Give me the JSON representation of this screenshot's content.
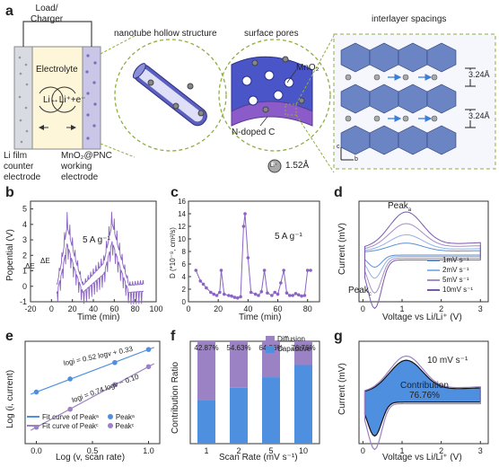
{
  "panels": {
    "a": {
      "letter": "a",
      "load_label": "Load/\nCharger",
      "electrolyte": "Electrolyte",
      "reaction": "Li↔Li⁺+e⁻",
      "left_electrode": "Li film\ncounter\nelectrode",
      "right_electrode": "MnO₂@PNC\nworking\nelectrode",
      "nanotube_title": "nanotube hollow structure",
      "pores_title": "surface pores",
      "mno2_label": "MnO₂",
      "ndoped_label": "N-doped C",
      "ion_symbol": "Li⁺",
      "ion_size": "1.52Å",
      "spacing_title": "interlayer spacings",
      "spacing_1": "3.24Å",
      "spacing_2": "3.24Å",
      "axis_c": "c",
      "axis_b": "b"
    },
    "b": {
      "letter": "b",
      "ylabel": "Popential (V)",
      "xlabel": "Time (min)",
      "annotation": "5 A g⁻¹",
      "delta_e": "ΔE",
      "delta_t": "ΔE",
      "yticks": [
        "-1",
        "0",
        "1",
        "2",
        "3",
        "4",
        "5"
      ],
      "xticks": [
        "-20",
        "0",
        "20",
        "40",
        "60",
        "80",
        "100"
      ]
    },
    "c": {
      "letter": "c",
      "ylabel": "D (*10⁻⁸, cm²/s)",
      "xlabel": "Time (min)",
      "annotation": "5 A g⁻¹",
      "yticks": [
        "0",
        "2",
        "4",
        "6",
        "8",
        "10",
        "12",
        "14",
        "16"
      ],
      "xticks": [
        "0",
        "20",
        "40",
        "60",
        "80"
      ]
    },
    "d": {
      "letter": "d",
      "ylabel": "Current (mV)",
      "xlabel": "Voltage vs Li/Li⁺ (V)",
      "peak_a": "Peak",
      "peak_a_sub": "a",
      "peak_c": "Peak",
      "peak_c_sub": "c",
      "xticks": [
        "0",
        "1",
        "2",
        "3"
      ],
      "legend": [
        "1mV s⁻¹",
        "2mV s⁻¹",
        "5mV s⁻¹",
        "10mV s⁻¹"
      ],
      "colors": [
        "#5b8fd6",
        "#8fb4e8",
        "#a68cc8",
        "#7a5aa8"
      ]
    },
    "e": {
      "letter": "e",
      "ylabel": "Log (i, current)",
      "xlabel": "Log (v, scan rate)",
      "eq1": "logi = 0.52 logv + 0.33",
      "eq2": "logi = 0.74 logv − 0.10",
      "xticks": [
        "0.0",
        "0.5",
        "1.0"
      ],
      "legend_fit_a": "Fit curve of Peak",
      "legend_fit_a_sub": "a",
      "legend_fit_c": "Fit curve of Peak",
      "legend_fit_c_sub": "c",
      "legend_pt_a": "Peak",
      "legend_pt_a_sub": "a",
      "legend_pt_c": "Peak",
      "legend_pt_c_sub": "c"
    },
    "f": {
      "letter": "f",
      "ylabel": "Contribution Ratio",
      "xlabel": "Scan Rate (mV s⁻¹)",
      "legend_diffusion": "Diffusion",
      "legend_capacitive": "Capacitive",
      "colors": {
        "diffusion": "#9b82c4",
        "capacitive": "#4f8fe0"
      }
    },
    "g": {
      "letter": "g",
      "ylabel": "Current (mV)",
      "xlabel": "Voltage vs Li/Li⁺ (V)",
      "scan": "10 mV s⁻¹",
      "contribution": "Contribution",
      "contribution_pct": "76.76%",
      "xticks": [
        "0",
        "1",
        "2",
        "3"
      ]
    }
  },
  "chart_data": [
    {
      "type": "line",
      "panel": "b",
      "xlabel": "Time (min)",
      "ylabel": "Popential (V)",
      "xlim": [
        -20,
        100
      ],
      "ylim": [
        -1,
        5.5
      ],
      "peaks_x": [
        10,
        15,
        22,
        28,
        55,
        60,
        66,
        72,
        84,
        89
      ],
      "envelope_upper": [
        {
          "x": 5,
          "y": 0.2
        },
        {
          "x": 10,
          "y": 2.2
        },
        {
          "x": 15,
          "y": 4.8
        },
        {
          "x": 22,
          "y": 2.5
        },
        {
          "x": 30,
          "y": 0.3
        },
        {
          "x": 50,
          "y": 2.0
        },
        {
          "x": 58,
          "y": 5.0
        },
        {
          "x": 66,
          "y": 2.5
        },
        {
          "x": 74,
          "y": 0.3
        },
        {
          "x": 88,
          "y": 0.4
        }
      ]
    },
    {
      "type": "line",
      "panel": "c",
      "xlabel": "Time (min)",
      "ylabel": "D (*10⁻⁸, cm²/s)",
      "xlim": [
        0,
        88
      ],
      "ylim": [
        0,
        16
      ],
      "points": [
        {
          "x": 5,
          "y": 5
        },
        {
          "x": 8,
          "y": 3.3
        },
        {
          "x": 10,
          "y": 2.8
        },
        {
          "x": 12,
          "y": 2.2
        },
        {
          "x": 15,
          "y": 1.5
        },
        {
          "x": 17,
          "y": 1.2
        },
        {
          "x": 19,
          "y": 1
        },
        {
          "x": 21,
          "y": 1.5
        },
        {
          "x": 22,
          "y": 5
        },
        {
          "x": 24,
          "y": 1.2
        },
        {
          "x": 27,
          "y": 1
        },
        {
          "x": 29,
          "y": 0.9
        },
        {
          "x": 31,
          "y": 0.7
        },
        {
          "x": 33,
          "y": 0.6
        },
        {
          "x": 35,
          "y": 0.8
        },
        {
          "x": 37,
          "y": 12
        },
        {
          "x": 38,
          "y": 14
        },
        {
          "x": 40,
          "y": 7
        },
        {
          "x": 42,
          "y": 1.5
        },
        {
          "x": 45,
          "y": 1.2
        },
        {
          "x": 47,
          "y": 1
        },
        {
          "x": 49,
          "y": 1.6
        },
        {
          "x": 51,
          "y": 5
        },
        {
          "x": 53,
          "y": 1.4
        },
        {
          "x": 56,
          "y": 1
        },
        {
          "x": 58,
          "y": 1.5
        },
        {
          "x": 60,
          "y": 1.2
        },
        {
          "x": 62,
          "y": 3
        },
        {
          "x": 64,
          "y": 5
        },
        {
          "x": 66,
          "y": 1.4
        },
        {
          "x": 68,
          "y": 1
        },
        {
          "x": 70,
          "y": 1
        },
        {
          "x": 72,
          "y": 1.3
        },
        {
          "x": 74,
          "y": 1.1
        },
        {
          "x": 76,
          "y": 0.9
        },
        {
          "x": 78,
          "y": 1
        },
        {
          "x": 80,
          "y": 5
        },
        {
          "x": 82,
          "y": 5
        }
      ]
    },
    {
      "type": "line",
      "panel": "d",
      "xlabel": "Voltage vs Li/Li⁺ (V)",
      "ylabel": "Current (mV)",
      "xlim": [
        -0.1,
        3.2
      ],
      "series": [
        {
          "name": "1mV s⁻¹",
          "scale": 0.25
        },
        {
          "name": "2mV s⁻¹",
          "scale": 0.45
        },
        {
          "name": "5mV s⁻¹",
          "scale": 0.72
        },
        {
          "name": "10mV s⁻¹",
          "scale": 1.0
        }
      ]
    },
    {
      "type": "scatter",
      "panel": "e",
      "xlabel": "Log (v, scan rate)",
      "ylabel": "Log (i, current)",
      "xlim": [
        -0.1,
        1.1
      ],
      "series": [
        {
          "name": "Peakₐ",
          "x": [
            0,
            0.301,
            0.699,
            1.0
          ],
          "y": [
            0.33,
            0.49,
            0.69,
            0.85
          ],
          "slope": 0.52,
          "intercept": 0.33
        },
        {
          "name": "Peakᴄ",
          "x": [
            0,
            0.301,
            0.699,
            1.0
          ],
          "y": [
            -0.1,
            0.12,
            0.42,
            0.64
          ],
          "slope": 0.74,
          "intercept": -0.1
        }
      ]
    },
    {
      "type": "bar",
      "panel": "f",
      "xlabel": "Scan Rate (mV s⁻¹)",
      "ylabel": "Contribution Ratio",
      "categories": [
        "1",
        "2",
        "5",
        "10"
      ],
      "percent_labels": [
        "42.87%",
        "54.63%",
        "64.86%",
        "76.76%"
      ],
      "series": [
        {
          "name": "Capacitive",
          "values": [
            0.4287,
            0.5463,
            0.6486,
            0.7676
          ]
        },
        {
          "name": "Diffusion",
          "values": [
            0.5713,
            0.4537,
            0.3514,
            0.2324
          ]
        }
      ],
      "ylim": [
        0,
        1
      ]
    },
    {
      "type": "area",
      "panel": "g",
      "xlabel": "Voltage vs Li/Li⁺ (V)",
      "ylabel": "Current (mV)",
      "xlim": [
        -0.1,
        3.2
      ],
      "contribution": "76.76%"
    }
  ]
}
